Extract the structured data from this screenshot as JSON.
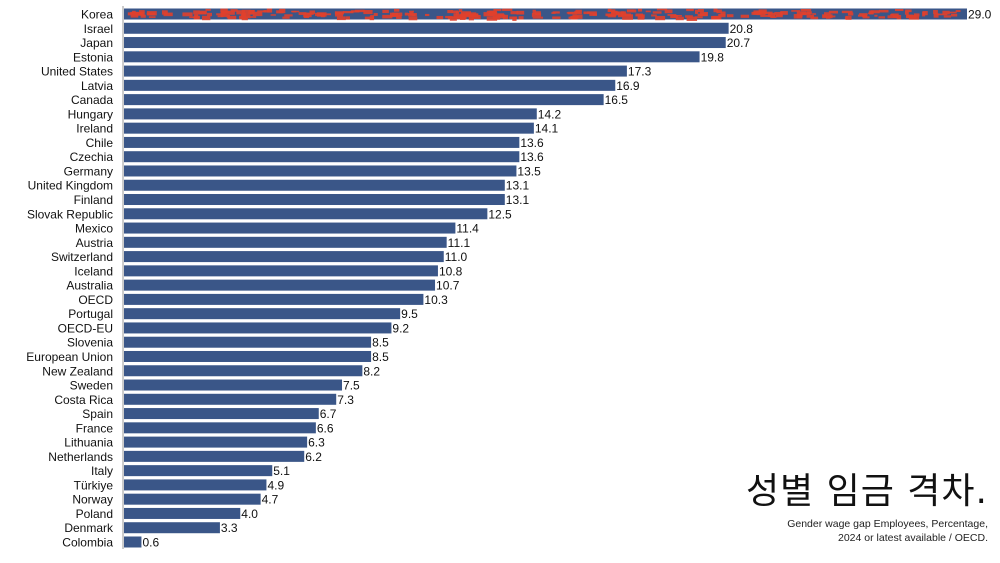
{
  "chart_data": {
    "type": "bar",
    "orientation": "horizontal",
    "title": "성별 임금 격차.",
    "subtitle": [
      "Gender wage gap Employees, Percentage,",
      "2024 or latest available  / OECD."
    ],
    "categories": [
      "Korea",
      "Israel",
      "Japan",
      "Estonia",
      "United States",
      "Latvia",
      "Canada",
      "Hungary",
      "Ireland",
      "Chile",
      "Czechia",
      "Germany",
      "United Kingdom",
      "Finland",
      "Slovak Republic",
      "Mexico",
      "Austria",
      "Switzerland",
      "Iceland",
      "Australia",
      "OECD",
      "Portugal",
      "OECD-EU",
      "Slovenia",
      "European Union",
      "New Zealand",
      "Sweden",
      "Costa Rica",
      "Spain",
      "France",
      "Lithuania",
      "Netherlands",
      "Italy",
      "Türkiye",
      "Norway",
      "Poland",
      "Denmark",
      "Colombia"
    ],
    "values": [
      29.0,
      20.8,
      20.7,
      19.8,
      17.3,
      16.9,
      16.5,
      14.2,
      14.1,
      13.6,
      13.6,
      13.5,
      13.1,
      13.1,
      12.5,
      11.4,
      11.1,
      11.0,
      10.8,
      10.7,
      10.3,
      9.5,
      9.2,
      8.5,
      8.5,
      8.2,
      7.5,
      7.3,
      6.7,
      6.6,
      6.3,
      6.2,
      5.1,
      4.9,
      4.7,
      4.0,
      3.3,
      0.6
    ],
    "xlim": [
      0,
      29
    ],
    "grid": false,
    "bar_color": "#3a5688",
    "highlight": {
      "category": "Korea",
      "overlay_color": "#e0402c"
    }
  }
}
